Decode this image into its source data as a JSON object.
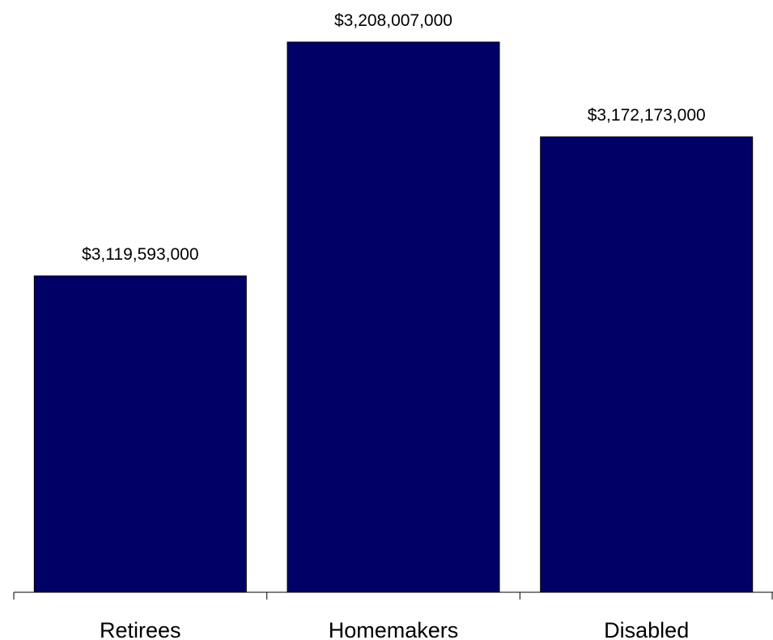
{
  "chart_data": {
    "type": "bar",
    "categories": [
      "Retirees",
      "Homemakers",
      "Disabled"
    ],
    "values": [
      3119593000,
      3208007000,
      3172173000
    ],
    "value_labels": [
      "$3,119,593,000",
      "$3,208,007,000",
      "$3,172,173,000"
    ],
    "title": "",
    "xlabel": "",
    "ylabel": "",
    "ylim": [
      3000000000,
      3220000000
    ],
    "grid": false,
    "legend": "none",
    "colors": {
      "bar_fill": "#000066",
      "bar_stroke": "#000000"
    }
  }
}
